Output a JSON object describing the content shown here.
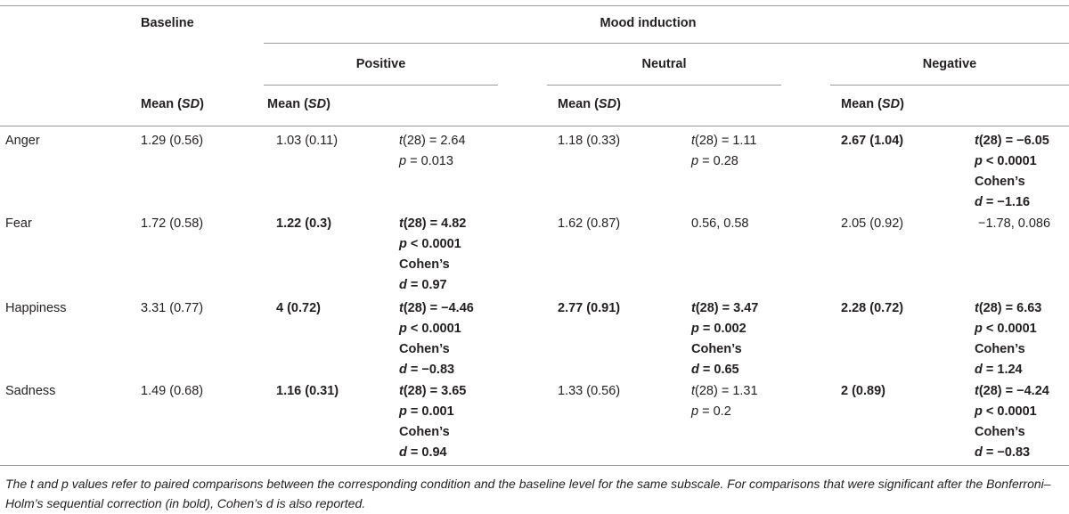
{
  "header": {
    "baseline": "Baseline",
    "mood_induction": "Mood induction",
    "positive": "Positive",
    "neutral": "Neutral",
    "negative": "Negative",
    "mean_label": "Mean (",
    "sd_label": "SD",
    "close_paren": ")"
  },
  "rows": [
    {
      "label": "Anger",
      "baseline": "1.29 (0.56)",
      "pos_mean": "1.03 (0.11)",
      "pos_stats": [
        "t(28) = 2.64",
        "p = 0.013"
      ],
      "neu_mean": "1.18 (0.33)",
      "neu_stats": [
        "t(28) = 1.11",
        "p = 0.28"
      ],
      "neg_mean": "2.67 (1.04)",
      "neg_stats": [
        "t(28) = −6.05",
        "p < 0.0001",
        "Cohen’s",
        "d = −1.16"
      ]
    },
    {
      "label": "Fear",
      "baseline": "1.72 (0.58)",
      "pos_mean": "1.22 (0.3)",
      "pos_stats": [
        "t(28) = 4.82",
        "p < 0.0001",
        "Cohen’s",
        "d = 0.97"
      ],
      "neu_mean": "1.62 (0.87)",
      "neu_stats": [
        "0.56, 0.58"
      ],
      "neg_mean": "2.05 (0.92)",
      "neg_stats": [
        "−1.78, 0.086"
      ]
    },
    {
      "label": "Happiness",
      "baseline": "3.31 (0.77)",
      "pos_mean": "4 (0.72)",
      "pos_stats": [
        "t(28) = −4.46",
        "p < 0.0001",
        "Cohen’s",
        "d = −0.83"
      ],
      "neu_mean": "2.77 (0.91)",
      "neu_stats": [
        "t(28) = 3.47",
        "p = 0.002",
        "Cohen’s",
        "d = 0.65"
      ],
      "neg_mean": "2.28 (0.72)",
      "neg_stats": [
        "t(28) = 6.63",
        "p < 0.0001",
        "Cohen’s",
        "d = 1.24"
      ]
    },
    {
      "label": "Sadness",
      "baseline": "1.49 (0.68)",
      "pos_mean": "1.16 (0.31)",
      "pos_stats": [
        "t(28) = 3.65",
        "p = 0.001",
        "Cohen’s",
        "d = 0.94"
      ],
      "neu_mean": "1.33 (0.56)",
      "neu_stats": [
        "t(28) = 1.31",
        "p = 0.2"
      ],
      "neg_mean": "2 (0.89)",
      "neg_stats": [
        "t(28) = −4.24",
        "p < 0.0001",
        "Cohen’s",
        "d = −0.83"
      ]
    }
  ],
  "footnote": "The t and p values refer to paired comparisons between the corresponding condition and the baseline level for the same subscale. For comparisons that were significant after the Bonferroni–Holm’s sequential correction (in bold), Cohen’s d is also reported."
}
